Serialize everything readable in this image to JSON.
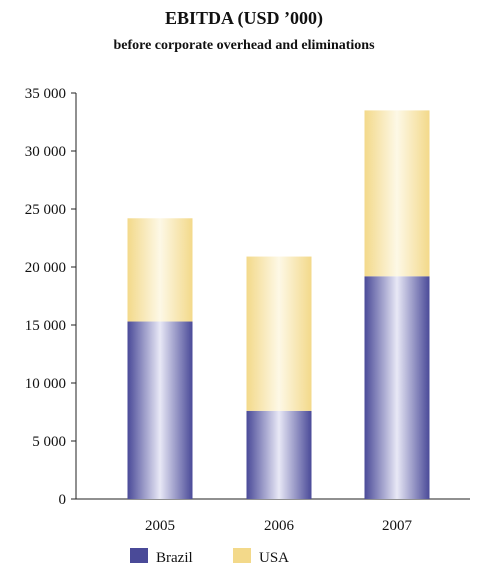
{
  "chart_data": {
    "type": "bar",
    "stacked": true,
    "title": "EBITDA (USD ’000)",
    "subtitle": "before corporate overhead and eliminations",
    "categories": [
      "2005",
      "2006",
      "2007"
    ],
    "series": [
      {
        "name": "Brazil",
        "values": [
          15300,
          7600,
          19200
        ],
        "color": "#4a4a98"
      },
      {
        "name": "USA",
        "values": [
          8900,
          13300,
          14300
        ],
        "color": "#f3d98a"
      }
    ],
    "ylim": [
      0,
      35000
    ],
    "yticks": [
      0,
      5000,
      10000,
      15000,
      20000,
      25000,
      30000,
      35000
    ],
    "ytick_labels": [
      "0",
      "5 000",
      "10 000",
      "15 000",
      "20 000",
      "25 000",
      "30 000",
      "35 000"
    ],
    "grid": false,
    "legend": "bottom-left"
  }
}
